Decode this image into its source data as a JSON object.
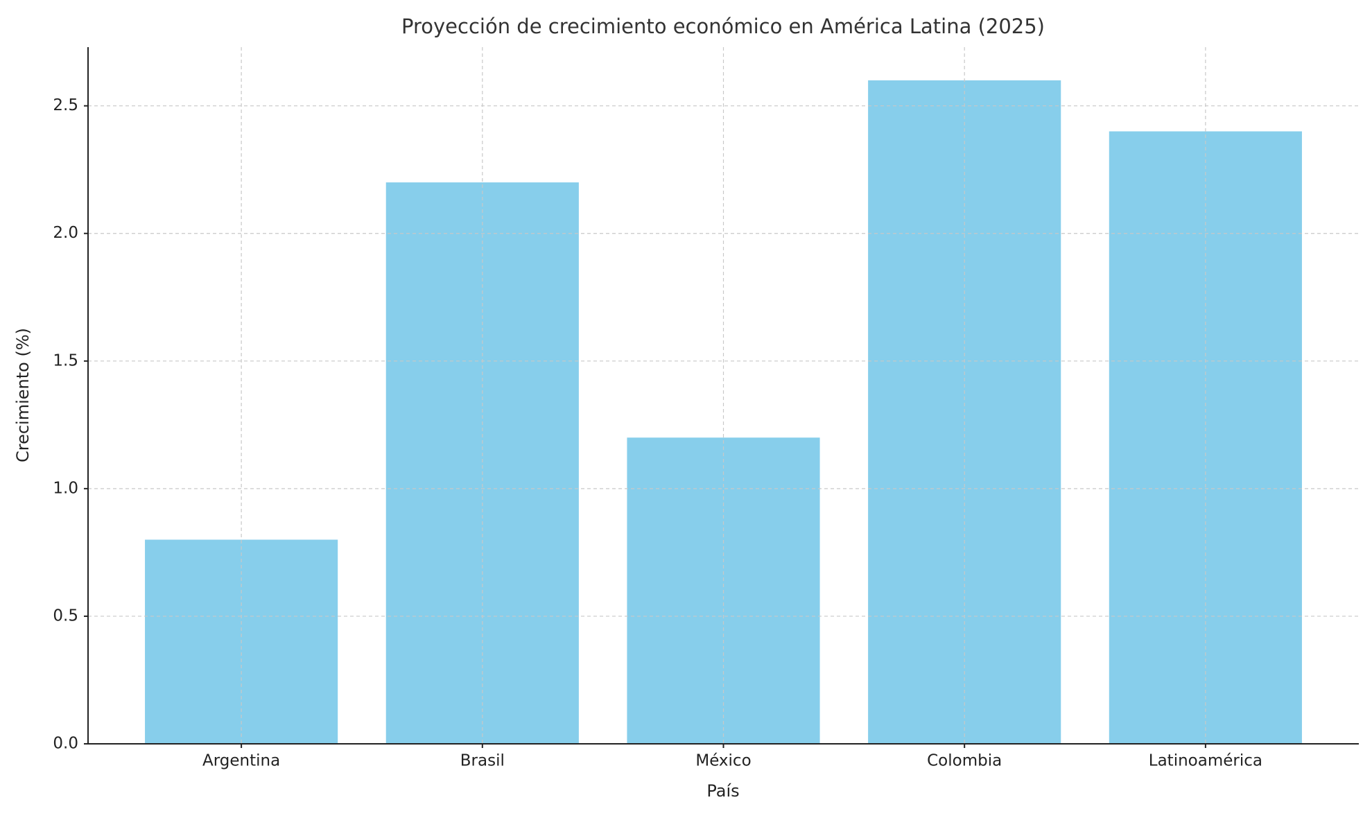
{
  "chart_data": {
    "type": "bar",
    "title": "Proyección de crecimiento económico en América Latina (2025)",
    "x_label": "País",
    "y_label": "Crecimiento (%)",
    "categories": [
      "Argentina",
      "Brasil",
      "México",
      "Colombia",
      "Latinoamérica"
    ],
    "values": [
      0.8,
      2.2,
      1.2,
      2.6,
      2.4
    ],
    "color": "#87ceeb",
    "ylim": [
      0,
      2.73
    ],
    "yticks": [
      {
        "value": 0,
        "label": "0.0"
      },
      {
        "value": 0.5,
        "label": "0.5"
      },
      {
        "value": 1,
        "label": "1.0"
      },
      {
        "value": 1.5,
        "label": "1.5"
      },
      {
        "value": 2,
        "label": "2.0"
      },
      {
        "value": 2.5,
        "label": "2.5"
      }
    ],
    "grid": true
  }
}
